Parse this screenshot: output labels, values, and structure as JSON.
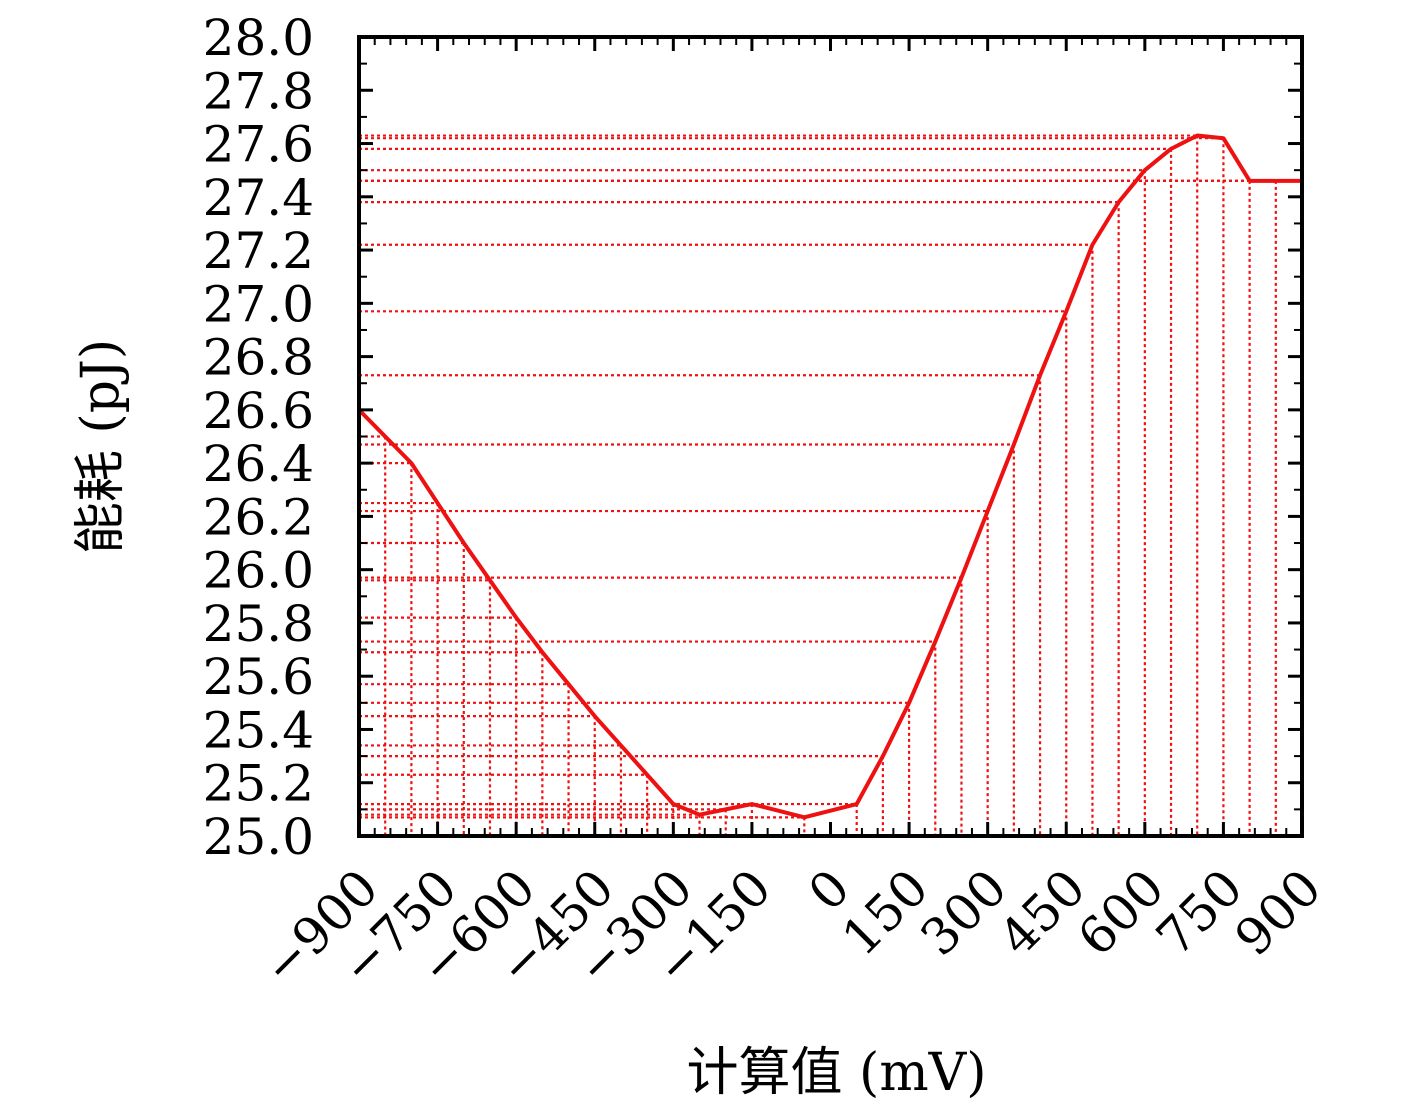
{
  "chart_data": {
    "type": "line",
    "title": "",
    "xlabel": "计算值 (mV)",
    "ylabel": "能耗 (pJ)",
    "xlim": [
      -900,
      900
    ],
    "ylim": [
      25.0,
      28.0
    ],
    "xticks": [
      -900,
      -750,
      -600,
      -450,
      -300,
      -150,
      0,
      150,
      300,
      450,
      600,
      750,
      900
    ],
    "xtick_labels": [
      "−900",
      "−750",
      "−600",
      "−450",
      "−300",
      "−150",
      "0",
      "150",
      "300",
      "450",
      "600",
      "750",
      "900"
    ],
    "yticks": [
      25.0,
      25.2,
      25.4,
      25.6,
      25.8,
      26.0,
      26.2,
      26.4,
      26.6,
      26.8,
      27.0,
      27.2,
      27.4,
      27.6,
      27.8,
      28.0
    ],
    "ytick_labels": [
      "25.0",
      "25.2",
      "25.4",
      "25.6",
      "25.8",
      "26.0",
      "26.2",
      "26.4",
      "26.6",
      "26.8",
      "27.0",
      "27.2",
      "27.4",
      "27.6",
      "27.8",
      "28.0"
    ],
    "grid": false,
    "series": [
      {
        "color": "#ee1111",
        "x": [
          -900,
          -850,
          -800,
          -750,
          -700,
          -650,
          -600,
          -550,
          -500,
          -450,
          -400,
          -350,
          -300,
          -250,
          -200,
          -150,
          -50,
          50,
          100,
          150,
          200,
          250,
          300,
          350,
          400,
          450,
          500,
          550,
          600,
          650,
          700,
          750,
          800,
          850,
          900
        ],
        "y": [
          26.6,
          26.5,
          26.4,
          26.25,
          26.1,
          25.96,
          25.82,
          25.69,
          25.57,
          25.45,
          25.34,
          25.23,
          25.12,
          25.08,
          25.1,
          25.12,
          25.07,
          25.12,
          25.3,
          25.5,
          25.73,
          25.97,
          26.22,
          26.47,
          26.73,
          26.97,
          27.22,
          27.38,
          27.5,
          27.58,
          27.63,
          27.62,
          27.46,
          27.46,
          27.46
        ]
      }
    ]
  }
}
